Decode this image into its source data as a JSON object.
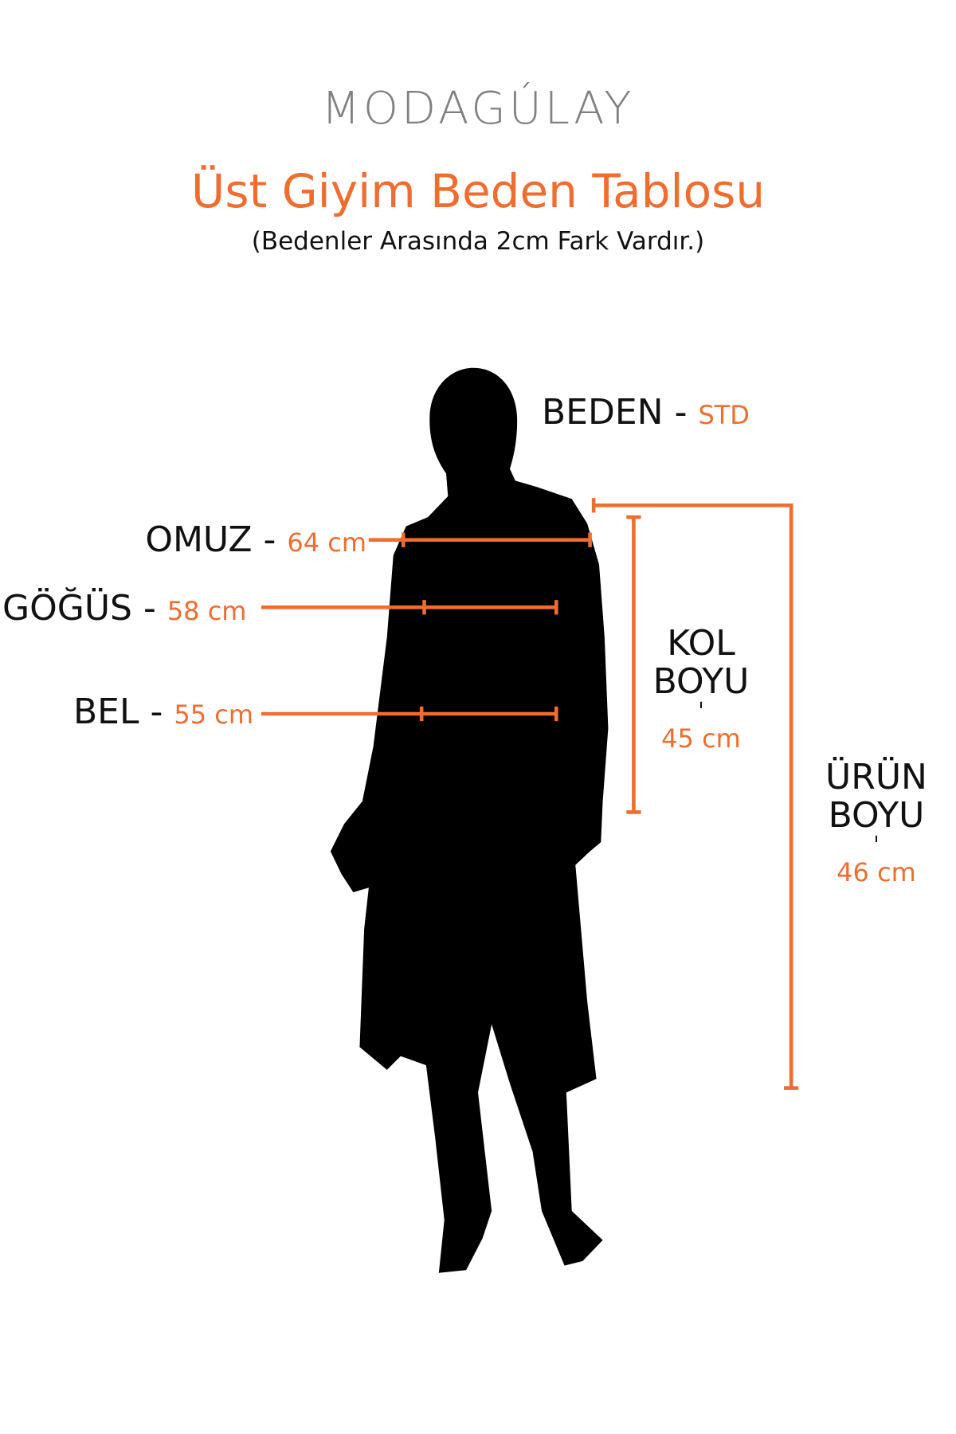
{
  "brand": {
    "logo": "MODAGÚLAY"
  },
  "header": {
    "title": "Üst Giyim Beden Tablosu",
    "subtitle": "(Bedenler Arasında 2cm Fark Vardır.)"
  },
  "size": {
    "label": "BEDEN - ",
    "value": "STD"
  },
  "measurements": {
    "omuz": {
      "label": "OMUZ - ",
      "value": "64 cm"
    },
    "gogus": {
      "label": "GÖĞÜS - ",
      "value": "58 cm"
    },
    "bel": {
      "label": "BEL - ",
      "value": "55 cm"
    },
    "kol_boyu": {
      "line1": "KOL",
      "line2": "BOYU",
      "sep": "ˈ",
      "value": "45 cm"
    },
    "urun_boyu": {
      "line1": "ÜRÜN",
      "line2": "BOYU",
      "sep": "ˈ",
      "value": "46 cm"
    }
  },
  "colors": {
    "accent": "#ef6d2f",
    "logo": "#808080",
    "silhouette": "#000000"
  }
}
